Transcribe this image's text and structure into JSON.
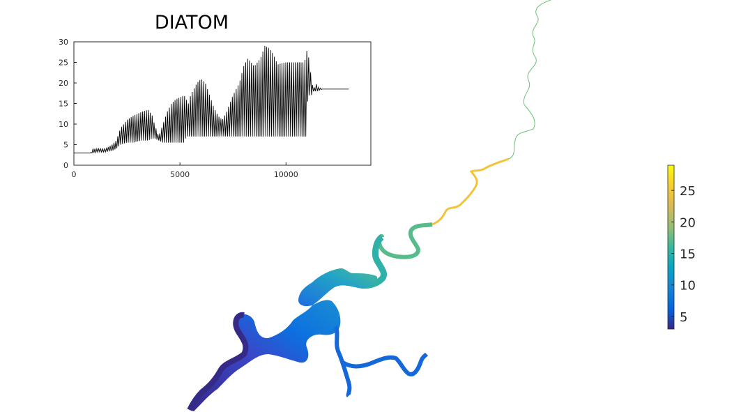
{
  "chart_data": [
    {
      "type": "line",
      "title": "DIATOM",
      "xlabel": "",
      "ylabel": "",
      "xlim": [
        0,
        14000
      ],
      "ylim": [
        0,
        30
      ],
      "x_ticks": [
        0,
        5000,
        10000
      ],
      "y_ticks": [
        0,
        5,
        10,
        15,
        20,
        25,
        30
      ],
      "grid": false,
      "legend": "none",
      "line_color": "#000000",
      "series": [
        {
          "x": [
            0,
            800,
            900,
            1200,
            1500,
            1800,
            2000,
            2200,
            2500,
            2800,
            3000,
            3200,
            3500,
            3700,
            3800,
            4000,
            4200,
            4400,
            4600,
            4800,
            5000,
            5200,
            5300,
            5400,
            5500,
            5700,
            5800,
            6000,
            6200,
            6400,
            6600,
            6800,
            7000,
            7200,
            7500,
            7800,
            8000,
            8200,
            8500,
            8800,
            9000,
            9200,
            9400,
            9600,
            9800,
            10000,
            10200,
            10500,
            10800,
            10950,
            11000,
            11100,
            11200,
            11300,
            11400,
            11500,
            11700,
            11800,
            12000,
            12500,
            13000
          ],
          "upper": [
            3,
            3,
            4,
            4,
            4,
            5,
            6,
            9,
            11,
            12,
            12.5,
            13,
            13.5,
            12,
            10,
            7,
            10,
            13,
            15,
            16,
            16.5,
            17,
            16,
            15,
            17,
            19,
            20,
            21,
            20,
            17,
            14,
            12,
            11,
            13,
            17,
            20,
            24,
            26,
            24,
            26,
            29,
            28.5,
            27,
            24.5,
            24.8,
            25,
            25,
            25,
            25,
            26,
            29,
            25,
            21,
            18,
            20,
            19,
            18.5,
            18.5,
            18.5,
            18.5,
            18.5
          ],
          "lower": [
            3,
            3,
            3,
            3.2,
            3.2,
            3.5,
            4,
            5,
            5.5,
            5.5,
            5.8,
            6,
            6,
            6.5,
            6.5,
            6,
            5.5,
            5.5,
            5.5,
            5.5,
            5.5,
            5.5,
            7,
            7,
            7,
            7,
            7,
            7,
            7,
            7,
            7,
            7,
            7,
            7,
            7,
            7,
            7,
            7,
            7,
            7,
            7,
            7,
            7,
            7,
            7,
            7,
            7,
            7,
            7,
            7,
            15,
            17,
            17,
            18,
            18,
            18,
            18.5,
            18.5,
            18.5,
            18.5,
            18.5
          ]
        }
      ]
    },
    {
      "type": "heatmap",
      "colorbar": {
        "limits": [
          3,
          29
        ],
        "ticks": [
          5,
          10,
          15,
          20,
          25
        ],
        "colormap": [
          "#352a87",
          "#0363e1",
          "#1485d4",
          "#06a7c6",
          "#38b99e",
          "#92bf73",
          "#d9ba56",
          "#fcce2e",
          "#f9fb0e"
        ]
      },
      "map_regions": [
        {
          "name": "upper-river-trace",
          "value": 18
        },
        {
          "name": "upper-river-segment",
          "value": 26
        },
        {
          "name": "middle-river-segment",
          "value": 13
        },
        {
          "name": "estuary-upper-bay",
          "value": 9
        },
        {
          "name": "estuary-mid-bay",
          "value": 6
        },
        {
          "name": "estuary-lower-bay",
          "value": 3.5
        },
        {
          "name": "southeast-tributary",
          "value": 8
        }
      ]
    }
  ]
}
